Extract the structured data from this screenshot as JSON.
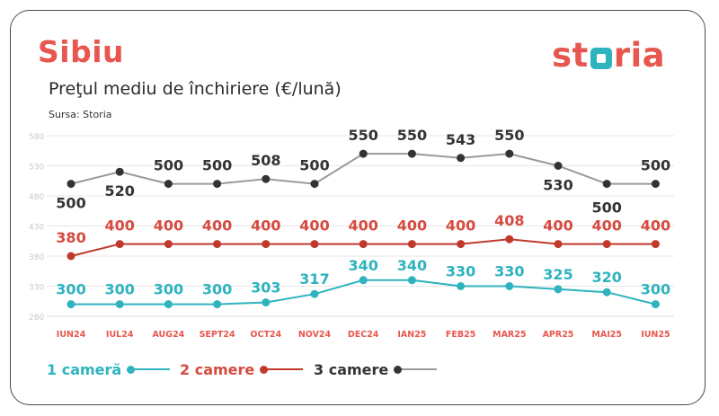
{
  "header": {
    "title": "Sibiu",
    "subtitle": "Preţul mediu de închiriere (€/lună)",
    "source": "Sursa: Storia",
    "logo_text_left": "st",
    "logo_text_right": "ria"
  },
  "colors": {
    "accent_red": "#e8574f",
    "teal": "#2eb3bf",
    "red": "#c0392b",
    "dark": "#333333",
    "grey_line": "#9a9a9a",
    "grid": "#e6e6e6",
    "tick": "#c8c8c8"
  },
  "chart_data": {
    "type": "line",
    "categories": [
      "IUN24",
      "IUL24",
      "AUG24",
      "SEPT24",
      "OCT24",
      "NOV24",
      "DEC24",
      "IAN25",
      "FEB25",
      "MAR25",
      "APR25",
      "MAI25",
      "IUN25"
    ],
    "yticks": [
      280,
      330,
      380,
      430,
      480,
      530,
      580
    ],
    "ylim": [
      280,
      580
    ],
    "grid": true,
    "legend": "bottom-left",
    "series": [
      {
        "name": "1 cameră",
        "color": "#2eb3bf",
        "marker_color": "#2eb3bf",
        "line_color": "#2eb3bf",
        "values": [
          300,
          300,
          300,
          300,
          303,
          317,
          340,
          340,
          330,
          330,
          325,
          320,
          300
        ],
        "labels": [
          "300",
          "300",
          "300",
          "300",
          "303",
          "317",
          "340",
          "340",
          "330",
          "330",
          "325",
          "320",
          "300"
        ]
      },
      {
        "name": "2 camere",
        "color": "#d64a3f",
        "marker_color": "#c0392b",
        "line_color": "#c0392b",
        "values": [
          380,
          400,
          400,
          400,
          400,
          400,
          400,
          400,
          400,
          408,
          400,
          400,
          400
        ],
        "labels": [
          "380",
          "400",
          "400",
          "400",
          "400",
          "400",
          "400",
          "400",
          "400",
          "408",
          "400",
          "400",
          "400"
        ]
      },
      {
        "name": "3 camere",
        "color": "#333333",
        "marker_color": "#333333",
        "line_color": "#9a9a9a",
        "values": [
          500,
          520,
          500,
          500,
          508,
          500,
          550,
          550,
          543,
          550,
          530,
          500,
          500
        ],
        "labels": [
          "500",
          "520",
          "500",
          "500",
          "508",
          "500",
          "550",
          "550",
          "543",
          "550",
          "530",
          "500",
          "500"
        ]
      }
    ]
  }
}
